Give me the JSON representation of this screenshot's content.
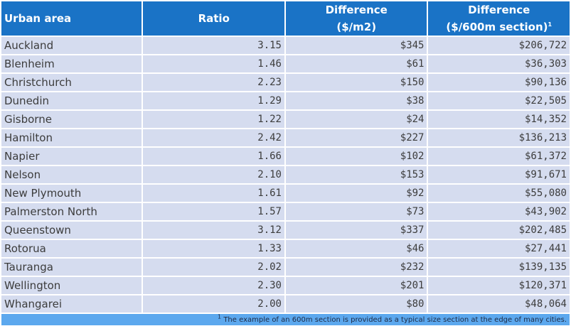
{
  "table": {
    "headers": {
      "urban_area": "Urban area",
      "ratio": "Ratio",
      "diff_m2_line1": "Difference",
      "diff_m2_line2": "($/m2)",
      "diff_section_line1": "Difference",
      "diff_section_line2": "($/600m section)",
      "diff_section_marker": "1"
    },
    "rows": [
      {
        "area": "Auckland",
        "ratio": "3.15",
        "diff_m2": "$345",
        "diff_section": "$206,722"
      },
      {
        "area": "Blenheim",
        "ratio": "1.46",
        "diff_m2": "$61",
        "diff_section": "$36,303"
      },
      {
        "area": "Christchurch",
        "ratio": "2.23",
        "diff_m2": "$150",
        "diff_section": "$90,136"
      },
      {
        "area": "Dunedin",
        "ratio": "1.29",
        "diff_m2": "$38",
        "diff_section": "$22,505"
      },
      {
        "area": "Gisborne",
        "ratio": "1.22",
        "diff_m2": "$24",
        "diff_section": "$14,352"
      },
      {
        "area": "Hamilton",
        "ratio": "2.42",
        "diff_m2": "$227",
        "diff_section": "$136,213"
      },
      {
        "area": "Napier",
        "ratio": "1.66",
        "diff_m2": "$102",
        "diff_section": "$61,372"
      },
      {
        "area": "Nelson",
        "ratio": "2.10",
        "diff_m2": "$153",
        "diff_section": "$91,671"
      },
      {
        "area": "New Plymouth",
        "ratio": "1.61",
        "diff_m2": "$92",
        "diff_section": "$55,080"
      },
      {
        "area": "Palmerston North",
        "ratio": "1.57",
        "diff_m2": "$73",
        "diff_section": "$43,902"
      },
      {
        "area": "Queenstown",
        "ratio": "3.12",
        "diff_m2": "$337",
        "diff_section": "$202,485"
      },
      {
        "area": "Rotorua",
        "ratio": "1.33",
        "diff_m2": "$46",
        "diff_section": "$27,441"
      },
      {
        "area": "Tauranga",
        "ratio": "2.02",
        "diff_m2": "$232",
        "diff_section": "$139,135"
      },
      {
        "area": "Wellington",
        "ratio": "2.30",
        "diff_m2": "$201",
        "diff_section": "$120,371"
      },
      {
        "area": "Whangarei",
        "ratio": "2.00",
        "diff_m2": "$80",
        "diff_section": "$48,064"
      }
    ],
    "footnote": {
      "marker": "1",
      "text": " The example of an 600m section is provided as a typical size section at the edge of many cities."
    }
  },
  "colors": {
    "header_bg": "#1a73c6",
    "row_bg": "#d5dcef",
    "footnote_bg": "#5ca8ee"
  }
}
